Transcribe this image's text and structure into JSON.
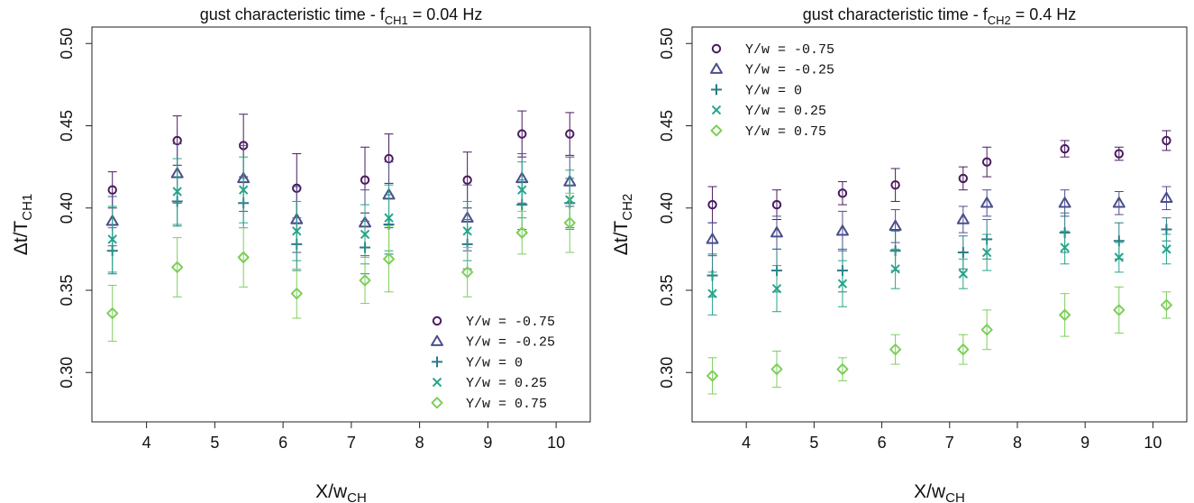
{
  "colors": {
    "Y/w = -0.75": "#4a1a5e",
    "Y/w = -0.25": "#4b4e8c",
    "Y/w = 0": "#2a7a86",
    "Y/w = 0.25": "#26a589",
    "Y/w = 0.75": "#7ccf5a"
  },
  "chart_data": [
    {
      "type": "scatter",
      "title_main": "gust characteristic time - f",
      "title_sub": "CH1",
      "title_tail": " = 0.04 Hz",
      "xlabel_main": "X/w",
      "xlabel_sub": "CH",
      "ylabel_main": "Δt/T",
      "ylabel_sub": "CH1",
      "xlim": [
        3.2,
        10.5
      ],
      "ylim": [
        0.27,
        0.51
      ],
      "xticks": [
        4,
        5,
        6,
        7,
        8,
        9,
        10
      ],
      "yticks": [
        0.3,
        0.35,
        0.4,
        0.45,
        0.5
      ],
      "legend_position": "bottom-right",
      "x": [
        3.5,
        4.45,
        5.42,
        6.2,
        7.2,
        7.55,
        8.7,
        9.5,
        10.2
      ],
      "series": [
        {
          "name": "Y/w = -0.75",
          "marker": "circle",
          "values": [
            0.411,
            0.441,
            0.438,
            0.412,
            0.417,
            0.43,
            0.417,
            0.445,
            0.445
          ],
          "err": [
            0.011,
            0.015,
            0.019,
            0.021,
            0.02,
            0.015,
            0.017,
            0.014,
            0.013
          ]
        },
        {
          "name": "Y/w = -0.25",
          "marker": "triangle",
          "values": [
            0.392,
            0.421,
            0.418,
            0.393,
            0.391,
            0.408,
            0.394,
            0.418,
            0.416
          ],
          "err": [
            0.015,
            0.018,
            0.02,
            0.02,
            0.02,
            0.02,
            0.02,
            0.015,
            0.015
          ]
        },
        {
          "name": "Y/w = 0",
          "marker": "plus",
          "values": [
            0.374,
            0.404,
            0.403,
            0.378,
            0.376,
            0.39,
            0.378,
            0.402,
            0.403
          ],
          "err": [
            0.014,
            0.015,
            0.015,
            0.016,
            0.016,
            0.018,
            0.015,
            0.015,
            0.015
          ]
        },
        {
          "name": "Y/w = 0.25",
          "marker": "x",
          "values": [
            0.381,
            0.41,
            0.411,
            0.386,
            0.384,
            0.394,
            0.386,
            0.411,
            0.405
          ],
          "err": [
            0.02,
            0.02,
            0.02,
            0.018,
            0.018,
            0.02,
            0.018,
            0.017,
            0.018
          ]
        },
        {
          "name": "Y/w = 0.75",
          "marker": "diamond",
          "values": [
            0.336,
            0.364,
            0.37,
            0.348,
            0.356,
            0.369,
            0.361,
            0.385,
            0.391
          ],
          "err": [
            0.017,
            0.018,
            0.018,
            0.015,
            0.014,
            0.02,
            0.015,
            0.013,
            0.018
          ]
        }
      ]
    },
    {
      "type": "scatter",
      "title_main": "gust characteristic time - f",
      "title_sub": "CH2",
      "title_tail": " = 0.4 Hz",
      "xlabel_main": "X/w",
      "xlabel_sub": "CH",
      "ylabel_main": "Δt/T",
      "ylabel_sub": "CH2",
      "xlim": [
        3.2,
        10.5
      ],
      "ylim": [
        0.27,
        0.51
      ],
      "xticks": [
        4,
        5,
        6,
        7,
        8,
        9,
        10
      ],
      "yticks": [
        0.3,
        0.35,
        0.4,
        0.45,
        0.5
      ],
      "legend_position": "top-left",
      "x": [
        3.5,
        4.45,
        5.42,
        6.2,
        7.2,
        7.55,
        8.7,
        9.5,
        10.2
      ],
      "series": [
        {
          "name": "Y/w = -0.75",
          "marker": "circle",
          "values": [
            0.402,
            0.402,
            0.409,
            0.414,
            0.418,
            0.428,
            0.436,
            0.433,
            0.441
          ],
          "err": [
            0.011,
            0.009,
            0.007,
            0.01,
            0.007,
            0.009,
            0.005,
            0.004,
            0.006
          ]
        },
        {
          "name": "Y/w = -0.25",
          "marker": "triangle",
          "values": [
            0.381,
            0.385,
            0.386,
            0.389,
            0.393,
            0.403,
            0.403,
            0.403,
            0.406
          ],
          "err": [
            0.01,
            0.01,
            0.012,
            0.01,
            0.008,
            0.008,
            0.008,
            0.007,
            0.007
          ]
        },
        {
          "name": "Y/w = 0",
          "marker": "plus",
          "values": [
            0.359,
            0.362,
            0.362,
            0.374,
            0.373,
            0.381,
            0.385,
            0.38,
            0.387
          ],
          "err": [
            0.013,
            0.013,
            0.013,
            0.012,
            0.01,
            0.012,
            0.012,
            0.011,
            0.007
          ]
        },
        {
          "name": "Y/w = 0.25",
          "marker": "x",
          "values": [
            0.348,
            0.351,
            0.354,
            0.363,
            0.36,
            0.373,
            0.376,
            0.37,
            0.375
          ],
          "err": [
            0.013,
            0.014,
            0.014,
            0.012,
            0.009,
            0.011,
            0.01,
            0.009,
            0.009
          ]
        },
        {
          "name": "Y/w = 0.75",
          "marker": "diamond",
          "values": [
            0.298,
            0.302,
            0.302,
            0.314,
            0.314,
            0.326,
            0.335,
            0.338,
            0.341
          ],
          "err": [
            0.011,
            0.011,
            0.007,
            0.009,
            0.009,
            0.012,
            0.013,
            0.014,
            0.008
          ]
        }
      ]
    }
  ]
}
